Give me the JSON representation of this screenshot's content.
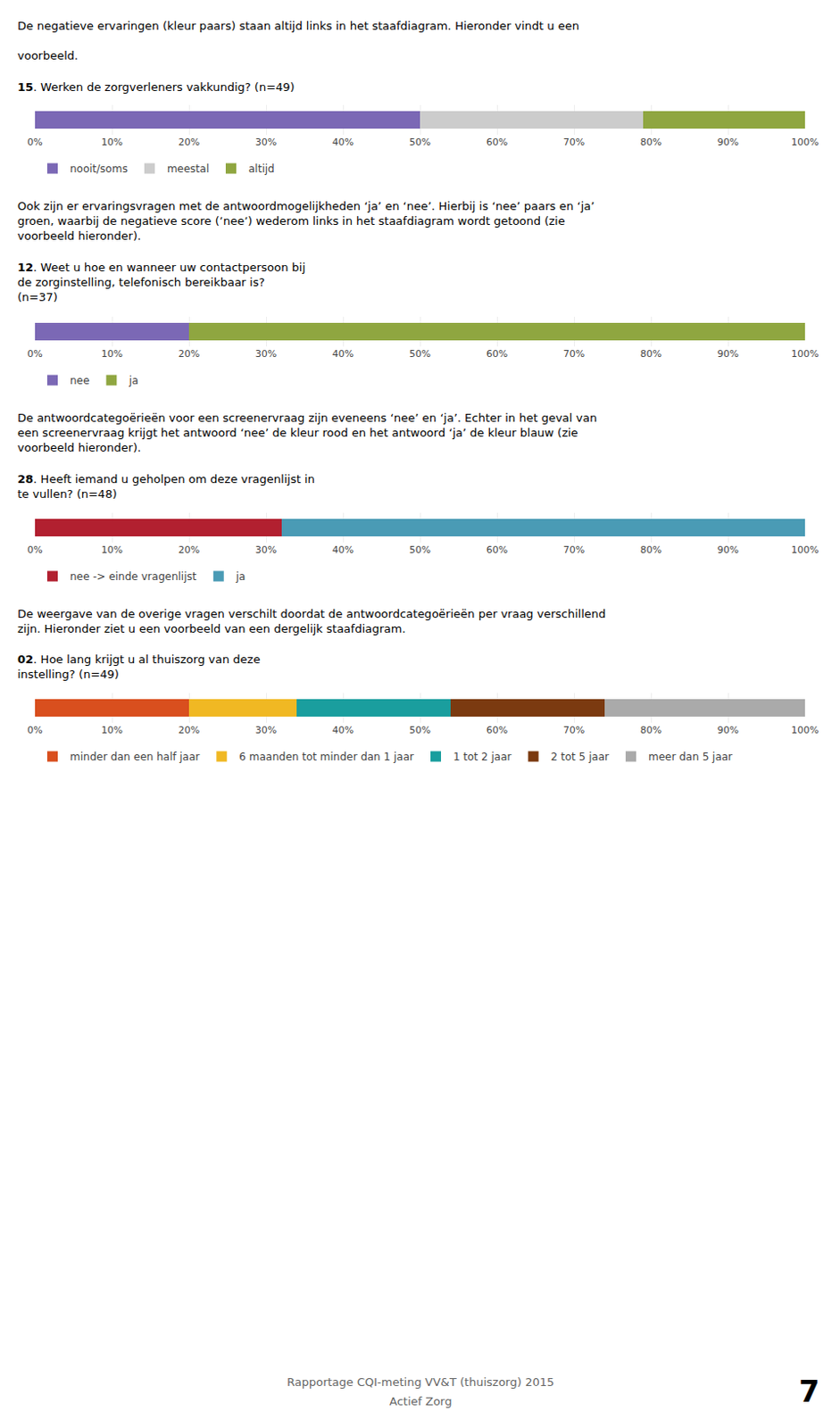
{
  "chart_data": [
    {
      "type": "bar",
      "orientation": "horizontal",
      "stacked": true,
      "annotations": [
        "De negatieve ervaringen (kleur paars) staan altijd links in het staafdiagram. Hieronder vindt u een\n\nvoorbeeld."
      ],
      "title": "15. Werken de zorgverleners vakkundig? (n=49)",
      "series": [
        {
          "name": "nooit/soms",
          "color": "#7B68B5",
          "values": [
            50
          ]
        },
        {
          "name": "meestal",
          "color": "#CCCCCC",
          "values": [
            29
          ]
        },
        {
          "name": "altijd",
          "color": "#8FA640",
          "values": [
            21
          ]
        }
      ],
      "xlim": [
        0,
        100
      ],
      "xticks": [
        {
          "value": 0,
          "label": "0%"
        },
        {
          "value": 10,
          "label": "10%"
        },
        {
          "value": 20,
          "label": "20%"
        },
        {
          "value": 30,
          "label": "30%"
        },
        {
          "value": 40,
          "label": "40%"
        },
        {
          "value": 50,
          "label": "50%"
        },
        {
          "value": 60,
          "label": "60%"
        },
        {
          "value": 70,
          "label": "70%"
        },
        {
          "value": 80,
          "label": "80%"
        },
        {
          "value": 90,
          "label": "90%"
        },
        {
          "value": 100,
          "label": "100%"
        }
      ],
      "grid": true,
      "tick_labels": "x",
      "legend": "bottom"
    },
    {
      "type": "bar",
      "orientation": "horizontal",
      "stacked": true,
      "annotations": [
        "Ook zijn er ervaringsvragen met de antwoordmogelijkheden ‘ja’ en ‘nee’. Hierbij is ‘nee’ paars en ‘ja’\ngroen, waarbij de negatieve score (ʼneeʼ) wederom links in het staafdiagram wordt getoond (zie\nvoorbeeld hieronder)."
      ],
      "title": "12. Weet u hoe en wanneer uw contactpersoon bij\nde zorginstelling, telefonisch bereikbaar is?\n(n=37)",
      "series": [
        {
          "name": "nee",
          "color": "#7B68B5",
          "values": [
            20
          ]
        },
        {
          "name": "ja",
          "color": "#8FA640",
          "values": [
            80
          ]
        }
      ],
      "xlim": [
        0,
        100
      ],
      "xticks": [
        {
          "value": 0,
          "label": "0%"
        },
        {
          "value": 10,
          "label": "10%"
        },
        {
          "value": 20,
          "label": "20%"
        },
        {
          "value": 30,
          "label": "30%"
        },
        {
          "value": 40,
          "label": "40%"
        },
        {
          "value": 50,
          "label": "50%"
        },
        {
          "value": 60,
          "label": "60%"
        },
        {
          "value": 70,
          "label": "70%"
        },
        {
          "value": 80,
          "label": "80%"
        },
        {
          "value": 90,
          "label": "90%"
        },
        {
          "value": 100,
          "label": "100%"
        }
      ],
      "grid": true,
      "tick_labels": "x",
      "legend": "bottom"
    },
    {
      "type": "bar",
      "orientation": "horizontal",
      "stacked": true,
      "annotations": [
        "De antwoordcategoërieën voor een screenervraag zijn eveneens ‘nee’ en ‘ja’. Echter in het geval van\neen screenervraag krijgt het antwoord ‘nee’ de kleur rood en het antwoord ‘ja’ de kleur blauw (zie\nvoorbeeld hieronder)."
      ],
      "title": "28. Heeft iemand u geholpen om deze vragenlijst in\nte vullen? (n=48)",
      "series": [
        {
          "name": "nee -> einde vragenlijst",
          "color": "#B22030",
          "values": [
            32
          ]
        },
        {
          "name": "ja",
          "color": "#4A9BB5",
          "values": [
            68
          ]
        }
      ],
      "xlim": [
        0,
        100
      ],
      "xticks": [
        {
          "value": 0,
          "label": "0%"
        },
        {
          "value": 10,
          "label": "10%"
        },
        {
          "value": 20,
          "label": "20%"
        },
        {
          "value": 30,
          "label": "30%"
        },
        {
          "value": 40,
          "label": "40%"
        },
        {
          "value": 50,
          "label": "50%"
        },
        {
          "value": 60,
          "label": "60%"
        },
        {
          "value": 70,
          "label": "70%"
        },
        {
          "value": 80,
          "label": "80%"
        },
        {
          "value": 90,
          "label": "90%"
        },
        {
          "value": 100,
          "label": "100%"
        }
      ],
      "grid": true,
      "tick_labels": "x",
      "legend": "bottom"
    },
    {
      "type": "bar",
      "orientation": "horizontal",
      "stacked": true,
      "annotations": [
        "De weergave van de overige vragen verschilt doordat de antwoordcategoërieën per vraag verschillend\nzijn. Hieronder ziet u een voorbeeld van een dergelijk staafdiagram."
      ],
      "title": "02. Hoe lang krijgt u al thuiszorg van deze\ninstelling? (n=49)",
      "series": [
        {
          "name": "minder dan een half jaar",
          "color": "#D94F1E",
          "values": [
            20
          ]
        },
        {
          "name": "6 maanden tot minder dan 1 jaar",
          "color": "#F0B823",
          "values": [
            14
          ]
        },
        {
          "name": "1 tot 2 jaar",
          "color": "#1A9E9E",
          "values": [
            20
          ]
        },
        {
          "name": "2 tot 5 jaar",
          "color": "#7B3A10",
          "values": [
            20
          ]
        },
        {
          "name": "meer dan 5 jaar",
          "color": "#AAAAAA",
          "values": [
            26
          ]
        }
      ],
      "xlim": [
        0,
        100
      ],
      "xticks": [
        {
          "value": 0,
          "label": "0%"
        },
        {
          "value": 10,
          "label": "10%"
        },
        {
          "value": 20,
          "label": "20%"
        },
        {
          "value": 30,
          "label": "30%"
        },
        {
          "value": 40,
          "label": "40%"
        },
        {
          "value": 50,
          "label": "50%"
        },
        {
          "value": 60,
          "label": "60%"
        },
        {
          "value": 70,
          "label": "70%"
        },
        {
          "value": 80,
          "label": "80%"
        },
        {
          "value": 90,
          "label": "90%"
        },
        {
          "value": 100,
          "label": "100%"
        }
      ],
      "grid": true,
      "tick_labels": "x",
      "legend": "bottom"
    }
  ],
  "annotations": [
    "Rapportage CQI-meting VV&T (thuiszorg) 2015",
    "Actief Zorg",
    "7"
  ]
}
